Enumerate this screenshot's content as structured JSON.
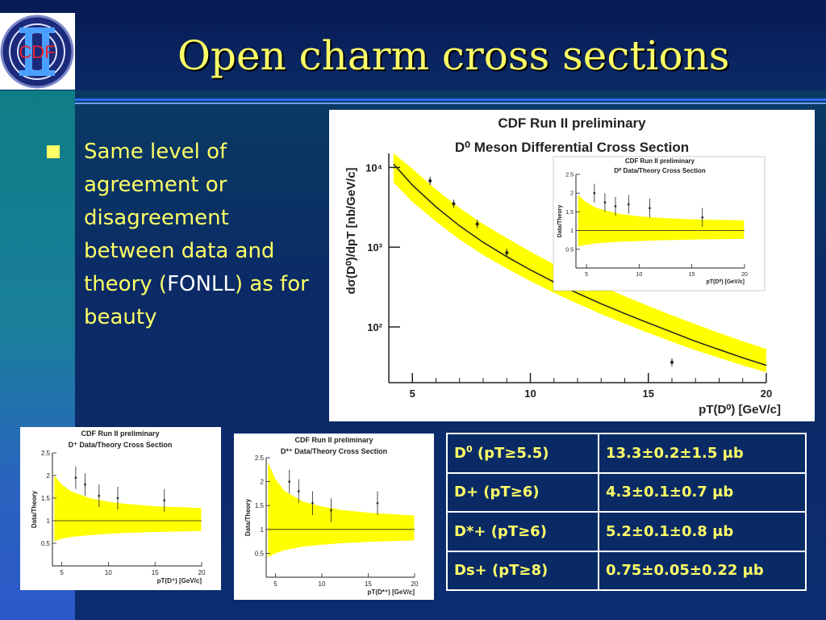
{
  "slide": {
    "title": "Open charm cross sections",
    "logo": {
      "text": "CDF",
      "numeral": "II"
    },
    "bullet": {
      "text_before": "Same level of agreement  or disagreement between data and theory (",
      "highlight": "FONLL",
      "text_after": ") as for beauty"
    },
    "colors": {
      "title": "#ffff66",
      "bullet": "#ffff66",
      "highlight": "#ffffff",
      "band": "#ffff00"
    }
  },
  "chart_data": [
    {
      "type": "line",
      "title": "CDF Run II preliminary",
      "subtitle": "D⁰ Meson Differential Cross Section",
      "xlabel": "pT(D⁰)  [GeV/c]",
      "ylabel": "dσ(D⁰)/dpT  [nb/GeV/c]",
      "xlim": [
        4,
        20
      ],
      "ylim": [
        20,
        15000
      ],
      "yscale": "log",
      "xticks": [
        5,
        10,
        15,
        20
      ],
      "yticks": [
        {
          "v": 100,
          "label": "10²"
        },
        {
          "v": 1000,
          "label": "10³"
        },
        {
          "v": 10000,
          "label": "10⁴"
        }
      ],
      "theory_x": [
        4.2,
        5,
        6,
        7,
        8,
        9,
        10,
        11,
        12,
        13,
        14,
        15,
        16,
        17,
        18,
        19,
        20
      ],
      "theory_y": [
        11000,
        6000,
        3200,
        1850,
        1150,
        760,
        520,
        365,
        265,
        195,
        147,
        112,
        86,
        66,
        52,
        41,
        33
      ],
      "band_lo": [
        6500,
        3700,
        2100,
        1250,
        800,
        540,
        375,
        268,
        196,
        145,
        110,
        84,
        65,
        51,
        41,
        33,
        27
      ],
      "band_hi": [
        15000,
        9600,
        5300,
        3100,
        1950,
        1300,
        880,
        610,
        440,
        325,
        242,
        183,
        140,
        108,
        84,
        66,
        53
      ],
      "data_x": [
        5.75,
        6.75,
        7.75,
        9.0,
        11.0,
        16.0
      ],
      "data_y": [
        6800,
        3500,
        1950,
        850,
        370,
        36
      ],
      "inset": {
        "title": "CDF Run II preliminary",
        "subtitle": "D⁰ Data/Theory Cross Section",
        "xlabel": "pT(D⁰)  [GeV/c]",
        "ylabel": "Data/Theory",
        "xlim": [
          4,
          20
        ],
        "ylim": [
          0,
          2.5
        ],
        "xticks": [
          5,
          10,
          15,
          20
        ],
        "yticks": [
          0.5,
          1,
          1.5,
          2,
          2.5
        ],
        "data_x": [
          5.75,
          6.75,
          7.75,
          9.0,
          11.0,
          16.0
        ],
        "data_y": [
          2.0,
          1.75,
          1.65,
          1.7,
          1.6,
          1.35
        ],
        "band_x": [
          4.2,
          5,
          6,
          8,
          10,
          12,
          15,
          20
        ],
        "band_lo": [
          0.58,
          0.62,
          0.66,
          0.7,
          0.72,
          0.74,
          0.76,
          0.78
        ],
        "band_hi": [
          1.95,
          1.75,
          1.6,
          1.45,
          1.38,
          1.34,
          1.3,
          1.27
        ]
      }
    },
    {
      "type": "line",
      "title": "CDF Run II preliminary",
      "subtitle": "D⁺ Data/Theory Cross Section",
      "xlabel": "pT(D⁺)  [GeV/c]",
      "ylabel": "Data/Theory",
      "xlim": [
        4,
        20
      ],
      "ylim": [
        0,
        2.5
      ],
      "xticks": [
        5,
        10,
        15,
        20
      ],
      "yticks": [
        0.5,
        1,
        1.5,
        2,
        2.5
      ],
      "data_x": [
        6.5,
        7.5,
        9.0,
        11.0,
        16.0
      ],
      "data_y": [
        1.95,
        1.8,
        1.55,
        1.5,
        1.45
      ],
      "band_x": [
        4.2,
        5,
        6,
        8,
        10,
        12,
        15,
        20
      ],
      "band_lo": [
        0.55,
        0.6,
        0.64,
        0.68,
        0.71,
        0.73,
        0.75,
        0.77
      ],
      "band_hi": [
        2.0,
        1.8,
        1.65,
        1.5,
        1.42,
        1.37,
        1.32,
        1.28
      ]
    },
    {
      "type": "line",
      "title": "CDF Run II preliminary",
      "subtitle": "D*⁺ Data/Theory Cross Section",
      "xlabel": "pT(D*⁺)  [GeV/c]",
      "ylabel": "Data/Theory",
      "xlim": [
        4,
        20
      ],
      "ylim": [
        0,
        2.5
      ],
      "xticks": [
        5,
        10,
        15,
        20
      ],
      "yticks": [
        0.5,
        1,
        1.5,
        2,
        2.5
      ],
      "data_x": [
        6.5,
        7.5,
        9.0,
        11.0,
        16.0
      ],
      "data_y": [
        2.0,
        1.8,
        1.55,
        1.4,
        1.55
      ],
      "band_x": [
        4.2,
        5,
        6,
        8,
        10,
        12,
        15,
        20
      ],
      "band_lo": [
        0.42,
        0.5,
        0.57,
        0.64,
        0.68,
        0.71,
        0.74,
        0.77
      ],
      "band_hi": [
        2.4,
        2.05,
        1.8,
        1.58,
        1.48,
        1.41,
        1.35,
        1.29
      ]
    }
  ],
  "table": {
    "rows": [
      {
        "particle": "D",
        "sup": "0",
        "cut": " (pT≥5.5)",
        "value": "13.3±0.2±1.5 μb"
      },
      {
        "particle": "D+",
        "sup": "",
        "cut": " (pT≥6)",
        "value": "4.3±0.1±0.7 μb"
      },
      {
        "particle": "D*+",
        "sup": "",
        "cut": " (pT≥6)",
        "value": "5.2±0.1±0.8 μb"
      },
      {
        "particle": "Ds+",
        "sup": "",
        "cut": " (pT≥8)",
        "value": "0.75±0.05±0.22 μb"
      }
    ]
  }
}
